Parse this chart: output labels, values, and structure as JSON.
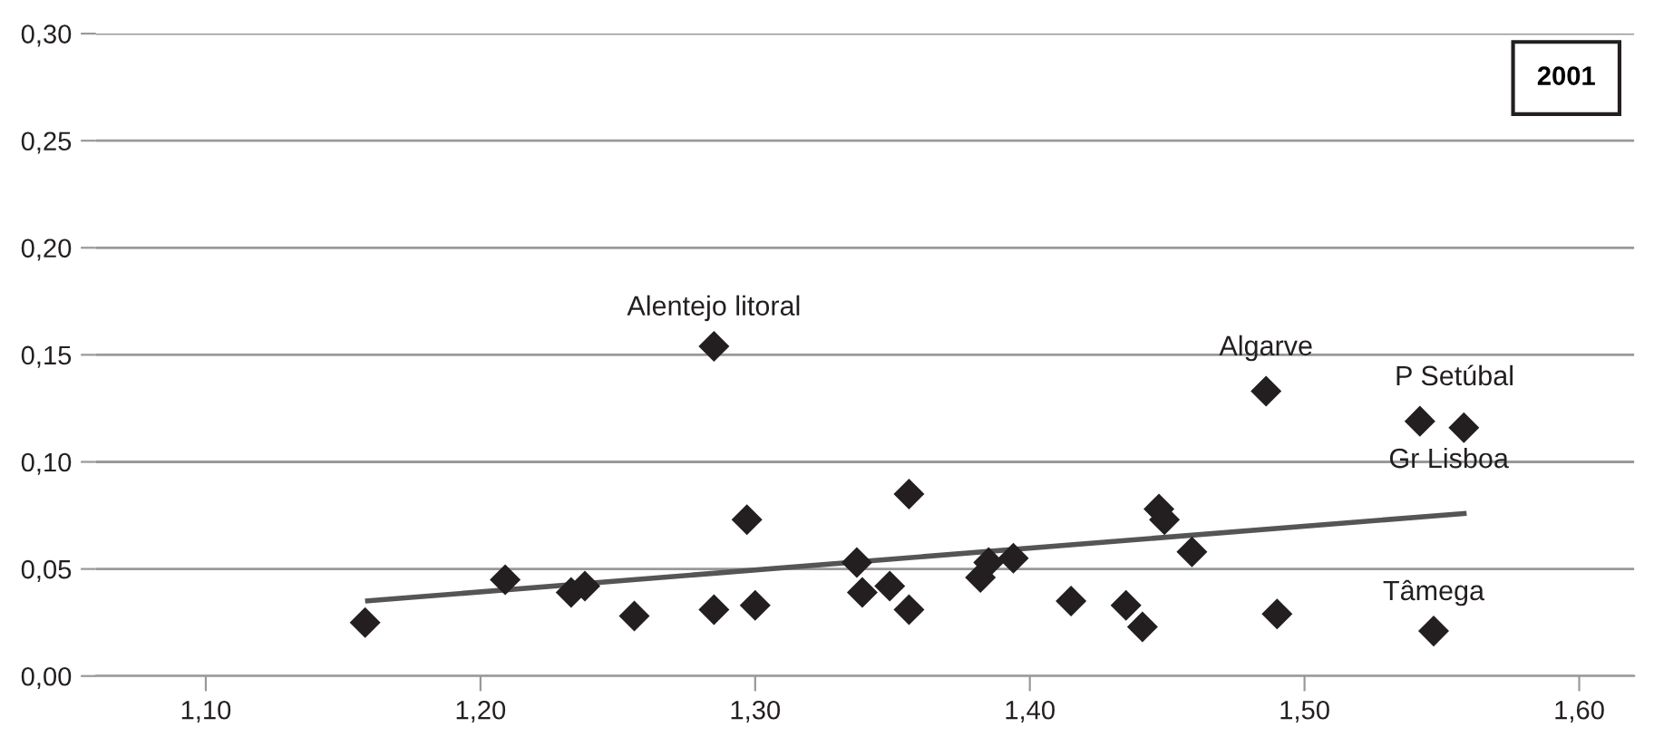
{
  "chart_data": {
    "type": "scatter",
    "grid": "y",
    "legend": false,
    "xlim": [
      1.06,
      1.62
    ],
    "ylim": [
      0,
      0.3
    ],
    "xticks": [
      {
        "value": 1.1,
        "label": "1,10"
      },
      {
        "value": 1.2,
        "label": "1,20"
      },
      {
        "value": 1.3,
        "label": "1,30"
      },
      {
        "value": 1.4,
        "label": "1,40"
      },
      {
        "value": 1.5,
        "label": "1,50"
      },
      {
        "value": 1.6,
        "label": "1,60"
      }
    ],
    "yticks": [
      {
        "value": 0,
        "label": "0,00"
      },
      {
        "value": 0.05,
        "label": "0,05"
      },
      {
        "value": 0.1,
        "label": "0,10"
      },
      {
        "value": 0.15,
        "label": "0,15"
      },
      {
        "value": 0.2,
        "label": "0,20"
      },
      {
        "value": 0.25,
        "label": "0,25"
      },
      {
        "value": 0.3,
        "label": "0,30"
      }
    ],
    "series": [
      {
        "marker": "diamond",
        "color": "#231f20",
        "x": [
          1.158,
          1.209,
          1.233,
          1.238,
          1.256,
          1.285,
          1.297,
          1.3,
          1.285,
          1.337,
          1.339,
          1.349,
          1.356,
          1.356,
          1.382,
          1.385,
          1.394,
          1.415,
          1.435,
          1.441,
          1.447,
          1.449,
          1.459,
          1.49,
          1.486,
          1.542,
          1.558,
          1.547
        ],
        "values": [
          0.025,
          0.045,
          0.039,
          0.042,
          0.028,
          0.031,
          0.073,
          0.033,
          0.154,
          0.053,
          0.039,
          0.042,
          0.085,
          0.031,
          0.046,
          0.053,
          0.055,
          0.035,
          0.033,
          0.023,
          0.078,
          0.073,
          0.058,
          0.029,
          0.133,
          0.119,
          0.116,
          0.021
        ]
      },
      {
        "type": "line",
        "marker": "none",
        "color": "#555555",
        "x": [
          1.158,
          1.559
        ],
        "values": [
          0.035,
          0.076
        ]
      }
    ],
    "annotations": [
      {
        "text": "Alentejo litoral",
        "x": 1.285,
        "y": 0.154
      },
      {
        "text": "Algarve",
        "x": 1.486,
        "y": 0.133
      },
      {
        "text": "P Setúbal",
        "x": 1.542,
        "y": 0.119
      },
      {
        "text": "Gr Lisboa",
        "x": 1.558,
        "y": 0.116
      },
      {
        "text": "Tâmega",
        "x": 1.547,
        "y": 0.021
      },
      "2001"
    ]
  }
}
